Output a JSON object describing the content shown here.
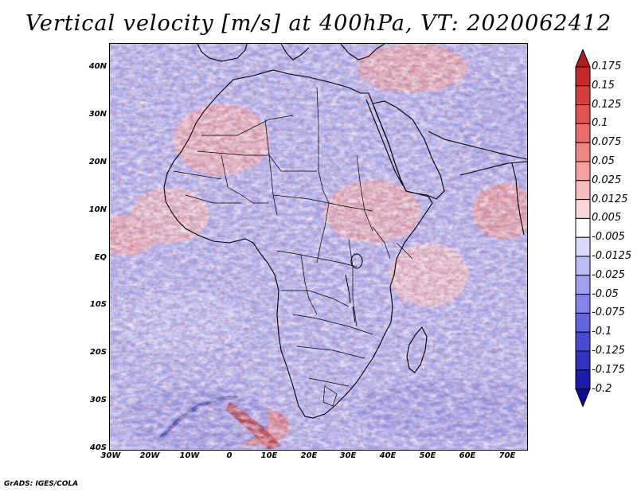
{
  "title": "Vertical velocity [m/s] at 400hPa, VT: 2020062412",
  "credit": "GrADS: IGES/COLA",
  "lat_labels": [
    "40N",
    "30N",
    "20N",
    "10N",
    "EQ",
    "10S",
    "20S",
    "30S",
    "40S"
  ],
  "lon_labels": [
    "30W",
    "20W",
    "10W",
    "0",
    "10E",
    "20E",
    "30E",
    "40E",
    "50E",
    "60E",
    "70E"
  ],
  "colorbar": {
    "labels": [
      "0.175",
      "0.15",
      "0.125",
      "0.1",
      "0.075",
      "0.05",
      "0.025",
      "0.0125",
      "0.005",
      "-0.005",
      "-0.0125",
      "-0.025",
      "-0.05",
      "-0.075",
      "-0.1",
      "-0.125",
      "-0.175",
      "-0.2"
    ],
    "colors": [
      "#b01c1c",
      "#c42a2a",
      "#d43e3e",
      "#e05454",
      "#e86c6c",
      "#ef8686",
      "#f4a0a0",
      "#f8bcbc",
      "#fbd8d8",
      "#ffffff",
      "#d8d8f8",
      "#bcbcf4",
      "#a0a0ee",
      "#8484e6",
      "#6666dc",
      "#4a4ad0",
      "#3232c0",
      "#1c1cac",
      "#0c0c98"
    ]
  }
}
